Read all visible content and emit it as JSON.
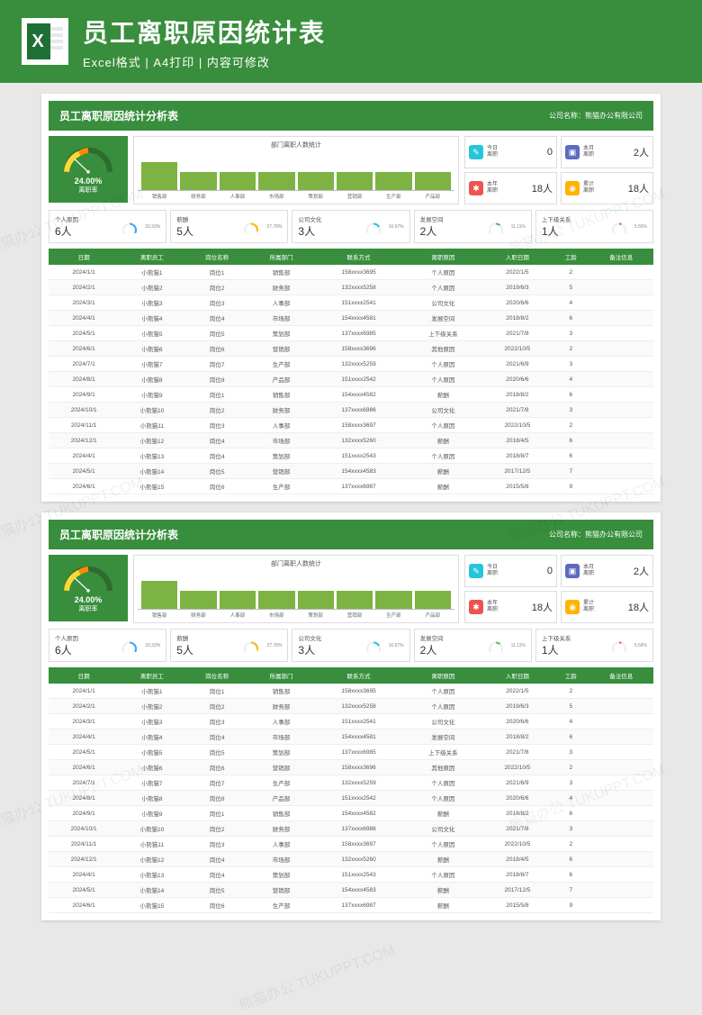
{
  "header": {
    "title": "员工离职原因统计表",
    "subtitle": "Excel格式 | A4打印 | 内容可修改",
    "excel_letter": "X"
  },
  "colors": {
    "primary": "#388e3c",
    "bar": "#7cb342",
    "page_bg": "#e8e8e8"
  },
  "watermark": "熊猫办公 TUKUPPT.COM",
  "sheet": {
    "title": "员工离职原因统计分析表",
    "company_label": "公司名称：",
    "company_name": "熊猫办公有限公司",
    "gauge": {
      "value": "24.00%",
      "label": "离职率",
      "ticks": [
        "0%",
        "20%",
        "40%",
        "60%",
        "80%",
        "100%"
      ],
      "percent_of_max": 24
    },
    "chart": {
      "title": "部门离职人数统计",
      "categories": [
        "销售部",
        "财务部",
        "人事部",
        "市场部",
        "策划部",
        "营销部",
        "生产部",
        "产品部"
      ],
      "values": [
        3,
        2,
        2,
        2,
        2,
        2,
        2,
        2
      ],
      "ymax": 4
    },
    "stats": [
      {
        "icon": "✎",
        "cls": "ico-teal",
        "label1": "今日",
        "label2": "离职",
        "value": "0"
      },
      {
        "icon": "▣",
        "cls": "ico-blue",
        "label1": "本月",
        "label2": "离职",
        "value": "2人"
      },
      {
        "icon": "✱",
        "cls": "ico-red",
        "label1": "本年",
        "label2": "离职",
        "value": "18人"
      },
      {
        "icon": "◉",
        "cls": "ico-amber",
        "label1": "累计",
        "label2": "离职",
        "value": "18人"
      }
    ],
    "reasons": [
      {
        "label": "个人原因",
        "value": "6人",
        "pct": "33.33%",
        "color": "#42a5f5"
      },
      {
        "label": "薪酬",
        "value": "5人",
        "pct": "27.78%",
        "color": "#ffb300"
      },
      {
        "label": "公司文化",
        "value": "3人",
        "pct": "16.67%",
        "color": "#26c6da"
      },
      {
        "label": "发展空间",
        "value": "2人",
        "pct": "11.11%",
        "color": "#66bb6a"
      },
      {
        "label": "上下级关系",
        "value": "1人",
        "pct": "5.56%",
        "color": "#ef5350"
      }
    ],
    "table": {
      "columns": [
        "日期",
        "离职员工",
        "岗位名称",
        "所属部门",
        "联系方式",
        "离职原因",
        "入职日期",
        "工龄",
        "备注信息"
      ],
      "rows": [
        [
          "2024/1/1",
          "小熊猫1",
          "岗位1",
          "销售部",
          "158xxxx3695",
          "个人原因",
          "2022/1/5",
          "2",
          ""
        ],
        [
          "2024/2/1",
          "小熊猫2",
          "岗位2",
          "财务部",
          "132xxxx5258",
          "个人原因",
          "2019/6/3",
          "5",
          ""
        ],
        [
          "2024/3/1",
          "小熊猫3",
          "岗位3",
          "人事部",
          "151xxxx2541",
          "公司文化",
          "2020/6/6",
          "4",
          ""
        ],
        [
          "2024/4/1",
          "小熊猫4",
          "岗位4",
          "市场部",
          "154xxxx4581",
          "发展空间",
          "2018/8/2",
          "6",
          ""
        ],
        [
          "2024/5/1",
          "小熊猫5",
          "岗位5",
          "策划部",
          "137xxxx6985",
          "上下级关系",
          "2021/7/8",
          "3",
          ""
        ],
        [
          "2024/6/1",
          "小熊猫6",
          "岗位6",
          "营销部",
          "158xxxx3696",
          "其他原因",
          "2022/10/5",
          "2",
          ""
        ],
        [
          "2024/7/1",
          "小熊猫7",
          "岗位7",
          "生产部",
          "132xxxx5259",
          "个人原因",
          "2021/6/9",
          "3",
          ""
        ],
        [
          "2024/8/1",
          "小熊猫8",
          "岗位8",
          "产品部",
          "151xxxx2542",
          "个人原因",
          "2020/6/6",
          "4",
          ""
        ],
        [
          "2024/9/1",
          "小熊猫9",
          "岗位1",
          "销售部",
          "154xxxx4582",
          "薪酬",
          "2018/8/2",
          "6",
          ""
        ],
        [
          "2024/10/1",
          "小熊猫10",
          "岗位2",
          "财务部",
          "137xxxx6986",
          "公司文化",
          "2021/7/8",
          "3",
          ""
        ],
        [
          "2024/11/1",
          "小熊猫11",
          "岗位3",
          "人事部",
          "158xxxx3697",
          "个人原因",
          "2022/10/5",
          "2",
          ""
        ],
        [
          "2024/12/1",
          "小熊猫12",
          "岗位4",
          "市场部",
          "132xxxx5260",
          "薪酬",
          "2018/4/5",
          "6",
          ""
        ],
        [
          "2024/4/1",
          "小熊猫13",
          "岗位4",
          "策划部",
          "151xxxx2543",
          "个人原因",
          "2018/8/7",
          "6",
          ""
        ],
        [
          "2024/5/1",
          "小熊猫14",
          "岗位5",
          "营销部",
          "154xxxx4583",
          "薪酬",
          "2017/12/5",
          "7",
          ""
        ],
        [
          "2024/6/1",
          "小熊猫15",
          "岗位6",
          "生产部",
          "137xxxx6987",
          "薪酬",
          "2015/5/8",
          "9",
          ""
        ]
      ]
    }
  }
}
